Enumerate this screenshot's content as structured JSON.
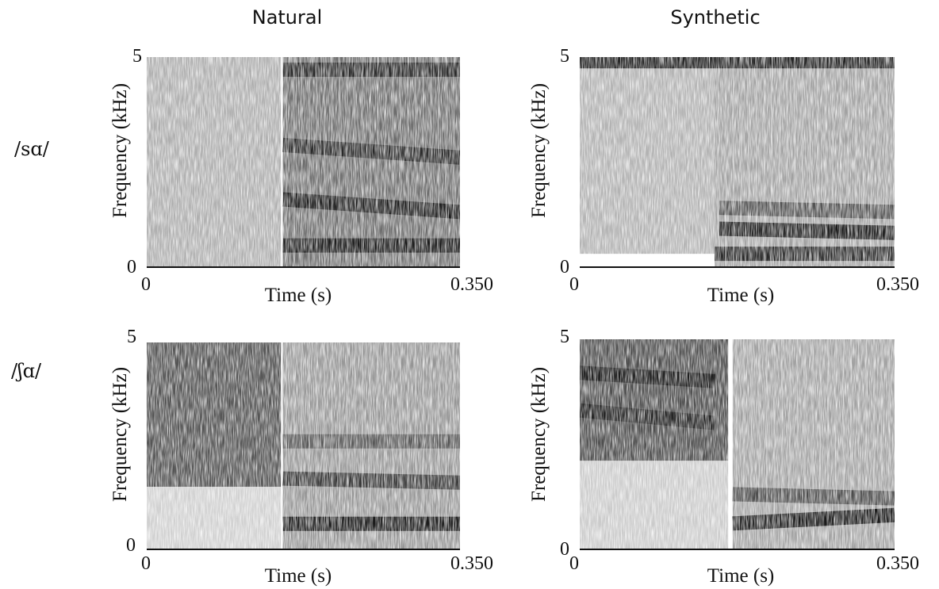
{
  "column_titles": [
    "Natural",
    "Synthetic"
  ],
  "row_labels": [
    "/sɑ/",
    "/ʃɑ/"
  ],
  "chart_data": [
    {
      "type": "heatmap",
      "title": "Natural",
      "row": "/sɑ/",
      "xlabel": "Time (s)",
      "ylabel": "Frequency (kHz)",
      "xlim": [
        0,
        0.35
      ],
      "ylim": [
        0,
        5
      ],
      "x_ticks": [
        "0",
        "0.350"
      ],
      "y_ticks": [
        "0",
        "5"
      ],
      "grid": false,
      "colors": {
        "low": "#ffffff",
        "high": "#141414"
      },
      "segments": [
        {
          "kind": "frication",
          "t_start": 0.0,
          "t_end": 0.15,
          "f_low": 0.0,
          "f_high": 5.0,
          "intensity": 0.34
        },
        {
          "kind": "vowel",
          "t_start": 0.152,
          "t_end": 0.35,
          "f_low": 0.0,
          "f_high": 5.0,
          "intensity": 0.62
        }
      ],
      "formants": [
        {
          "t_start": 0.152,
          "t_end": 0.35,
          "f_start": 0.5,
          "f_end": 0.5,
          "intensity": 0.95
        },
        {
          "t_start": 0.152,
          "t_end": 0.35,
          "f_start": 1.6,
          "f_end": 1.3,
          "intensity": 0.9
        },
        {
          "t_start": 0.152,
          "t_end": 0.35,
          "f_start": 2.9,
          "f_end": 2.6,
          "intensity": 0.75
        },
        {
          "t_start": 0.152,
          "t_end": 0.35,
          "f_start": 4.7,
          "f_end": 4.7,
          "intensity": 0.8
        }
      ]
    },
    {
      "type": "heatmap",
      "title": "Synthetic",
      "row": "/sɑ/",
      "xlabel": "Time (s)",
      "ylabel": "Frequency (kHz)",
      "xlim": [
        0,
        0.35
      ],
      "ylim": [
        0,
        5
      ],
      "x_ticks": [
        "0",
        "0.350"
      ],
      "y_ticks": [
        "0",
        "5"
      ],
      "grid": false,
      "colors": {
        "low": "#ffffff",
        "high": "#141414"
      },
      "segments": [
        {
          "kind": "frication",
          "t_start": 0.0,
          "t_end": 0.15,
          "f_low": 0.3,
          "f_high": 5.0,
          "intensity": 0.32
        },
        {
          "kind": "vowel",
          "t_start": 0.15,
          "t_end": 0.35,
          "f_low": 0.0,
          "f_high": 5.0,
          "intensity": 0.4
        }
      ],
      "formants": [
        {
          "t_start": 0.15,
          "t_end": 0.35,
          "f_start": 0.3,
          "f_end": 0.3,
          "intensity": 0.85
        },
        {
          "t_start": 0.155,
          "t_end": 0.35,
          "f_start": 0.9,
          "f_end": 0.8,
          "intensity": 0.95
        },
        {
          "t_start": 0.155,
          "t_end": 0.35,
          "f_start": 1.4,
          "f_end": 1.3,
          "intensity": 0.55
        },
        {
          "t_start": 0.0,
          "t_end": 0.35,
          "f_start": 4.9,
          "f_end": 4.9,
          "intensity": 0.9
        }
      ]
    },
    {
      "type": "heatmap",
      "title": "Natural",
      "row": "/ʃɑ/",
      "xlabel": "Time (s)",
      "ylabel": "Frequency (kHz)",
      "xlim": [
        0,
        0.35
      ],
      "ylim": [
        0,
        5
      ],
      "x_ticks": [
        "0",
        "0.350"
      ],
      "y_ticks": [
        "0",
        "5"
      ],
      "grid": false,
      "colors": {
        "low": "#ffffff",
        "high": "#141414"
      },
      "segments": [
        {
          "kind": "frication",
          "t_start": 0.0,
          "t_end": 0.15,
          "f_low": 1.5,
          "f_high": 5.0,
          "intensity": 0.72
        },
        {
          "kind": "frication-low",
          "t_start": 0.0,
          "t_end": 0.15,
          "f_low": 0.0,
          "f_high": 1.5,
          "intensity": 0.2
        },
        {
          "kind": "vowel",
          "t_start": 0.152,
          "t_end": 0.35,
          "f_low": 0.0,
          "f_high": 5.0,
          "intensity": 0.45
        }
      ],
      "formants": [
        {
          "t_start": 0.152,
          "t_end": 0.35,
          "f_start": 0.6,
          "f_end": 0.6,
          "intensity": 0.95
        },
        {
          "t_start": 0.152,
          "t_end": 0.35,
          "f_start": 1.7,
          "f_end": 1.6,
          "intensity": 0.75
        },
        {
          "t_start": 0.152,
          "t_end": 0.35,
          "f_start": 2.6,
          "f_end": 2.6,
          "intensity": 0.5
        }
      ]
    },
    {
      "type": "heatmap",
      "title": "Synthetic",
      "row": "/ʃɑ/",
      "xlabel": "Time (s)",
      "ylabel": "Frequency (kHz)",
      "xlim": [
        0,
        0.35
      ],
      "ylim": [
        0,
        5
      ],
      "x_ticks": [
        "0",
        "0.350"
      ],
      "y_ticks": [
        "0",
        "5"
      ],
      "grid": false,
      "colors": {
        "low": "#ffffff",
        "high": "#141414"
      },
      "segments": [
        {
          "kind": "frication",
          "t_start": 0.0,
          "t_end": 0.165,
          "f_low": 2.1,
          "f_high": 5.0,
          "intensity": 0.75
        },
        {
          "kind": "frication-low",
          "t_start": 0.0,
          "t_end": 0.165,
          "f_low": 0.0,
          "f_high": 2.1,
          "intensity": 0.22
        },
        {
          "kind": "vowel",
          "t_start": 0.17,
          "t_end": 0.35,
          "f_low": 0.0,
          "f_high": 5.0,
          "intensity": 0.4
        }
      ],
      "formants": [
        {
          "t_start": 0.17,
          "t_end": 0.35,
          "f_start": 0.6,
          "f_end": 0.8,
          "intensity": 0.95
        },
        {
          "t_start": 0.17,
          "t_end": 0.35,
          "f_start": 1.3,
          "f_end": 1.2,
          "intensity": 0.6
        },
        {
          "t_start": 0.0,
          "t_end": 0.15,
          "f_start": 4.2,
          "f_end": 4.0,
          "intensity": 0.85
        },
        {
          "t_start": 0.0,
          "t_end": 0.15,
          "f_start": 3.3,
          "f_end": 3.0,
          "intensity": 0.7
        }
      ]
    }
  ]
}
